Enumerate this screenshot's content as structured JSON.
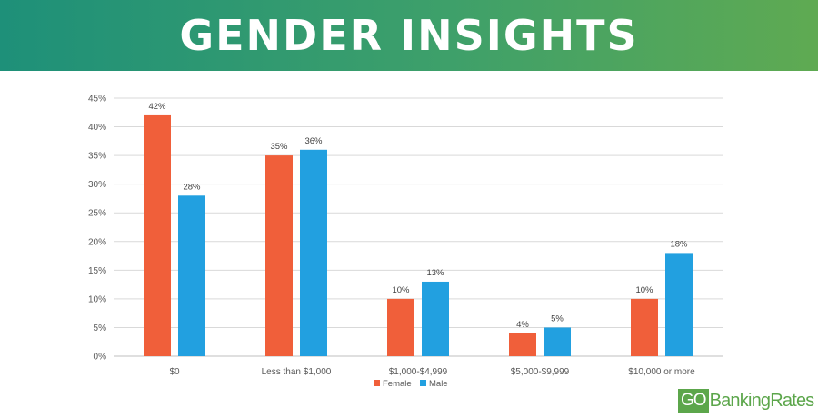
{
  "banner": {
    "title": "GENDER INSIGHTS"
  },
  "logo": {
    "part1": "GO",
    "part2": "BankingRates"
  },
  "colors": {
    "female": "#f05f3a",
    "male": "#22a0e0",
    "grid": "#d9d9d9",
    "axis": "#bfbfbf"
  },
  "chart_data": {
    "type": "bar",
    "categories": [
      "$0",
      "Less than $1,000",
      "$1,000-$4,999",
      "$5,000-$9,999",
      "$10,000 or more"
    ],
    "series": [
      {
        "name": "Female",
        "values": [
          42,
          35,
          10,
          4,
          10
        ],
        "labels": [
          "42%",
          "35%",
          "10%",
          "4%",
          "10%"
        ]
      },
      {
        "name": "Male",
        "values": [
          28,
          36,
          13,
          5,
          18
        ],
        "labels": [
          "28%",
          "36%",
          "13%",
          "5%",
          "18%"
        ]
      }
    ],
    "ylim": [
      0,
      45
    ],
    "yticks": [
      "0%",
      "5%",
      "10%",
      "15%",
      "20%",
      "25%",
      "30%",
      "35%",
      "40%",
      "45%"
    ],
    "grid": true,
    "legend": "bottom-center"
  }
}
